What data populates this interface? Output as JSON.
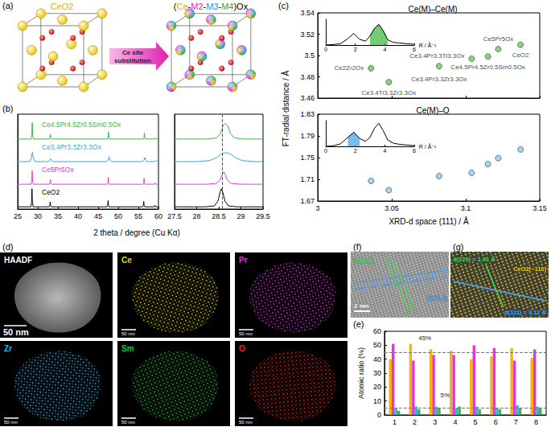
{
  "chart_data": [
    {
      "panel": "(b)",
      "type": "line",
      "x_label": "2 theta / degree (Cu Kα)",
      "xlim": [
        25,
        60
      ],
      "xticks": [
        25,
        30,
        35,
        40,
        45,
        50,
        55,
        60
      ],
      "ylim": [
        0,
        4.2
      ],
      "tick_labels": "x",
      "series": [
        {
          "name": "CeO2",
          "color": "#000000",
          "x": [
            25,
            28.25,
            28.45,
            28.55,
            28.65,
            28.85,
            32.78,
            32.98,
            33.08,
            33.18,
            33.38,
            47.18,
            47.38,
            47.48,
            47.58,
            47.78,
            56.04,
            56.24,
            56.34,
            56.44,
            56.64,
            58.79,
            58.99,
            59.09,
            59.19,
            59.39,
            60
          ],
          "values": [
            0.1,
            0.1,
            0.3,
            0.9,
            0.3,
            0.1,
            0.1,
            0.15,
            0.32,
            0.15,
            0.1,
            0.1,
            0.16,
            0.38,
            0.16,
            0.1,
            0.1,
            0.15,
            0.34,
            0.15,
            0.1,
            0.1,
            0.12,
            0.17,
            0.12,
            0.1,
            0.1
          ]
        },
        {
          "name": "Ce5Pr5Ox",
          "color": "#e83ad8",
          "x": [
            25,
            28.3,
            28.5,
            28.6,
            28.7,
            28.9,
            32.82,
            33.02,
            33.12,
            33.22,
            33.42,
            47.25,
            47.45,
            47.55,
            47.65,
            47.85,
            56.12,
            56.32,
            56.42,
            56.52,
            56.72,
            58.85,
            59.05,
            59.15,
            59.25,
            59.45,
            60
          ],
          "values": [
            1.1,
            1.1,
            1.25,
            1.7,
            1.25,
            1.1,
            1.1,
            1.15,
            1.3,
            1.15,
            1.1,
            1.1,
            1.16,
            1.4,
            1.16,
            1.1,
            1.1,
            1.15,
            1.36,
            1.15,
            1.1,
            1.1,
            1.12,
            1.16,
            1.12,
            1.1,
            1.1
          ]
        },
        {
          "name": "Ce3.4Pr3.3Zr3.3Ox",
          "color": "#3aa8d8",
          "x": [
            25,
            28.0,
            28.4,
            28.65,
            28.9,
            29.3,
            32.6,
            33.0,
            33.2,
            33.4,
            33.8,
            47.1,
            47.5,
            47.7,
            47.9,
            48.3,
            56.0,
            56.4,
            56.6,
            56.8,
            57.2,
            58.8,
            59.1,
            59.3,
            59.5,
            59.8,
            60
          ],
          "values": [
            2.1,
            2.1,
            2.25,
            2.52,
            2.25,
            2.1,
            2.1,
            2.15,
            2.22,
            2.15,
            2.1,
            2.1,
            2.18,
            2.32,
            2.18,
            2.1,
            2.1,
            2.16,
            2.28,
            2.16,
            2.1,
            2.1,
            2.12,
            2.15,
            2.12,
            2.1,
            2.1
          ]
        },
        {
          "name": "Ce4.5Pr4.5Zr0.5Sm0.5Ox",
          "color": "#3cb44b",
          "x": [
            25,
            28.32,
            28.52,
            28.62,
            28.72,
            28.92,
            32.85,
            33.05,
            33.15,
            33.25,
            33.45,
            47.3,
            47.5,
            47.6,
            47.7,
            47.9,
            56.2,
            56.4,
            56.5,
            56.6,
            56.8,
            58.9,
            59.1,
            59.2,
            59.3,
            59.5,
            60
          ],
          "values": [
            3.1,
            3.1,
            3.28,
            3.82,
            3.28,
            3.1,
            3.1,
            3.15,
            3.3,
            3.15,
            3.1,
            3.1,
            3.17,
            3.42,
            3.17,
            3.1,
            3.1,
            3.15,
            3.38,
            3.15,
            3.1,
            3.1,
            3.12,
            3.16,
            3.12,
            3.1,
            3.1
          ]
        }
      ]
    },
    {
      "type": "line",
      "xlim": [
        27.5,
        29.5
      ],
      "xticks": [
        27.5,
        28,
        28.5,
        29,
        29.5
      ],
      "ylim": [
        0,
        4.2
      ],
      "tick_labels": "x",
      "reference_x": 28.57,
      "series": [
        {
          "color": "#000000",
          "x": [
            27.5,
            28.2,
            28.4,
            28.48,
            28.53,
            28.56,
            28.59,
            28.64,
            28.72,
            28.92,
            29.5
          ],
          "values": [
            0.1,
            0.1,
            0.14,
            0.35,
            0.75,
            0.9,
            0.75,
            0.35,
            0.14,
            0.1,
            0.1
          ]
        },
        {
          "color": "#e83ad8",
          "x": [
            27.5,
            28.25,
            28.45,
            28.53,
            28.58,
            28.61,
            28.64,
            28.69,
            28.77,
            28.97,
            29.5
          ],
          "values": [
            1.1,
            1.1,
            1.14,
            1.3,
            1.55,
            1.65,
            1.55,
            1.3,
            1.14,
            1.1,
            1.1
          ]
        },
        {
          "color": "#3aa8d8",
          "x": [
            27.5,
            28.0,
            28.3,
            28.45,
            28.56,
            28.66,
            28.76,
            28.87,
            29.02,
            29.3,
            29.5
          ],
          "values": [
            2.1,
            2.1,
            2.15,
            2.28,
            2.44,
            2.5,
            2.44,
            2.28,
            2.15,
            2.1,
            2.1
          ]
        },
        {
          "color": "#3cb44b",
          "x": [
            27.5,
            28.25,
            28.45,
            28.54,
            28.6,
            28.65,
            28.7,
            28.76,
            28.85,
            29.05,
            29.5
          ],
          "values": [
            3.1,
            3.1,
            3.15,
            3.35,
            3.7,
            3.8,
            3.7,
            3.35,
            3.15,
            3.1,
            3.1
          ]
        }
      ]
    },
    {
      "panel": "(c)",
      "type": "scatter",
      "title": "Ce(M)–Ce(M)",
      "y_label": "FT-radial distance / Å",
      "xlim": [
        3,
        3.15
      ],
      "xticks": [
        3,
        3.05,
        3.1,
        3.15
      ],
      "ylim": [
        3.46,
        3.54
      ],
      "yticks": [
        3.46,
        3.48,
        3.5,
        3.52,
        3.54
      ],
      "tick_labels": "y",
      "color": "#66cc66",
      "marker": "circle",
      "x": [
        3.036,
        3.048,
        3.082,
        3.104,
        3.115,
        3.122,
        3.137
      ],
      "values": [
        3.488,
        3.475,
        3.49,
        3.497,
        3.499,
        3.506,
        3.51
      ],
      "point_labels": [
        "Ce2Zr2Ox",
        "Ce3.4Ti3.3Zr3.3Ox",
        "Ce3.4Pr3.3Zr3.3Ox",
        "Ce3.4Pr3.3Ti3.3Ox",
        "Ce4.5Pr4.5Zr0.5Sm0.5Ox",
        "Ce5Pr5Ox",
        "CeO2"
      ]
    },
    {
      "type": "scatter",
      "title": "Ce(M)–O",
      "x_label": "XRD-d space (111) / Å",
      "xlim": [
        3,
        3.15
      ],
      "xticks": [
        3,
        3.05,
        3.1,
        3.15
      ],
      "ylim": [
        1.67,
        1.83
      ],
      "yticks": [
        1.67,
        1.71,
        1.75,
        1.79,
        1.83
      ],
      "color": "#8ccff2",
      "marker": "circle",
      "x": [
        3.036,
        3.048,
        3.082,
        3.104,
        3.115,
        3.122,
        3.137
      ],
      "values": [
        1.707,
        1.69,
        1.716,
        1.722,
        1.738,
        1.749,
        1.765
      ]
    },
    {
      "type": "line",
      "x_label": "R / Å⁻¹",
      "xlim": [
        0,
        6
      ],
      "xticks": [
        0,
        2,
        4,
        6
      ],
      "ylim": [
        0,
        1
      ],
      "tick_labels": "x",
      "series": [
        {
          "color": "#000000",
          "x": [
            0,
            0.5,
            1,
            1.5,
            1.9,
            2.3,
            2.7,
            3.0,
            3.3,
            3.6,
            3.9,
            4.2,
            4.6,
            5,
            5.5,
            6
          ],
          "values": [
            0,
            0.02,
            0.05,
            0.25,
            0.45,
            0.22,
            0.15,
            0.35,
            0.65,
            0.8,
            0.55,
            0.2,
            0.1,
            0.08,
            0.05,
            0.03
          ]
        },
        {
          "type": "area",
          "color": "#44bb44",
          "x": [
            3.0,
            3.3,
            3.6,
            3.9,
            4.2
          ],
          "values": [
            0.35,
            0.65,
            0.8,
            0.55,
            0.2
          ]
        }
      ]
    },
    {
      "type": "line",
      "x_label": "R / Å⁻¹",
      "xlim": [
        0,
        6
      ],
      "xticks": [
        0,
        2,
        4,
        6
      ],
      "ylim": [
        0,
        1
      ],
      "tick_labels": "x",
      "series": [
        {
          "color": "#000000",
          "x": [
            0,
            0.5,
            1,
            1.5,
            1.9,
            2.3,
            2.7,
            3.0,
            3.3,
            3.6,
            3.9,
            4.2,
            4.6,
            5,
            5.5,
            6
          ],
          "values": [
            0,
            0.02,
            0.1,
            0.35,
            0.55,
            0.3,
            0.2,
            0.35,
            0.7,
            0.9,
            0.6,
            0.25,
            0.12,
            0.08,
            0.05,
            0.03
          ]
        },
        {
          "type": "area",
          "color": "#4aa8e8",
          "x": [
            1.5,
            1.9,
            2.3
          ],
          "values": [
            0.35,
            0.55,
            0.3
          ]
        }
      ]
    },
    {
      "panel": "(e)",
      "type": "bar",
      "y_label": "Atomic ratio (%)",
      "categories": [
        "1",
        "2",
        "3",
        "4",
        "5",
        "6",
        "7",
        "8"
      ],
      "ylim": [
        0,
        60
      ],
      "yticks": [
        0,
        10,
        20,
        30,
        40,
        50,
        60
      ],
      "series": [
        {
          "color": "#f2b705",
          "values": [
            40,
            51,
            47,
            46,
            40,
            42,
            48,
            41
          ]
        },
        {
          "color": "#e635d8",
          "values": [
            51,
            39,
            43,
            43,
            50,
            48,
            39,
            47
          ]
        },
        {
          "color": "#3ab0e0",
          "values": [
            5,
            6,
            6,
            5,
            6,
            5,
            7,
            6
          ]
        },
        {
          "color": "#3db54a",
          "values": [
            3,
            4,
            5,
            6,
            4,
            4,
            5,
            5
          ]
        }
      ],
      "reference_lines": [
        {
          "value": 45,
          "label": "45%"
        },
        {
          "value": 5,
          "label": "5%"
        }
      ]
    }
  ],
  "figure": {
    "a": {
      "panel": "(a)",
      "left_title": "CeO2",
      "left_title_color": "#e0b000",
      "right_title_parts": [
        {
          "text": "(",
          "color": "#000000"
        },
        {
          "text": "Ce",
          "color": "#e0b000"
        },
        {
          "text": "-",
          "color": "#000000"
        },
        {
          "text": "M2",
          "color": "#e020d0"
        },
        {
          "text": "-",
          "color": "#000000"
        },
        {
          "text": "M3",
          "color": "#2a8fd8"
        },
        {
          "text": "-",
          "color": "#000000"
        },
        {
          "text": "M4",
          "color": "#2aa84a"
        },
        {
          "text": ")Ox",
          "color": "#000000"
        }
      ],
      "arrow_text": "Ce site substitution"
    },
    "d": {
      "panel": "(d)",
      "scale_bar": "50 nm",
      "tiles": [
        {
          "label": "HAADF",
          "color": "#ffffff"
        },
        {
          "label": "Ce",
          "color": "#e8d800"
        },
        {
          "label": "Pr",
          "color": "#e030e0"
        },
        {
          "label": "Zr",
          "color": "#20b8f0"
        },
        {
          "label": "Sm",
          "color": "#20c830"
        },
        {
          "label": "O",
          "color": "#f02020"
        }
      ]
    },
    "f": {
      "panel": "(f)",
      "scale_bar": "2 nm",
      "spacing_labels": [
        {
          "text": "1.90 Å",
          "color": "#3ce03c"
        },
        {
          "text": "3.11 Å",
          "color": "#3b9cff"
        }
      ]
    },
    "g": {
      "panel": "(g)",
      "labels": [
        {
          "text": "d(220) = 1.91 Å",
          "color": "#44e044"
        },
        {
          "text": "CeO2[−110]",
          "color": "#f0d000"
        },
        {
          "text": "d(111) = 3.12 Å",
          "color": "#44a8ff"
        }
      ]
    }
  }
}
